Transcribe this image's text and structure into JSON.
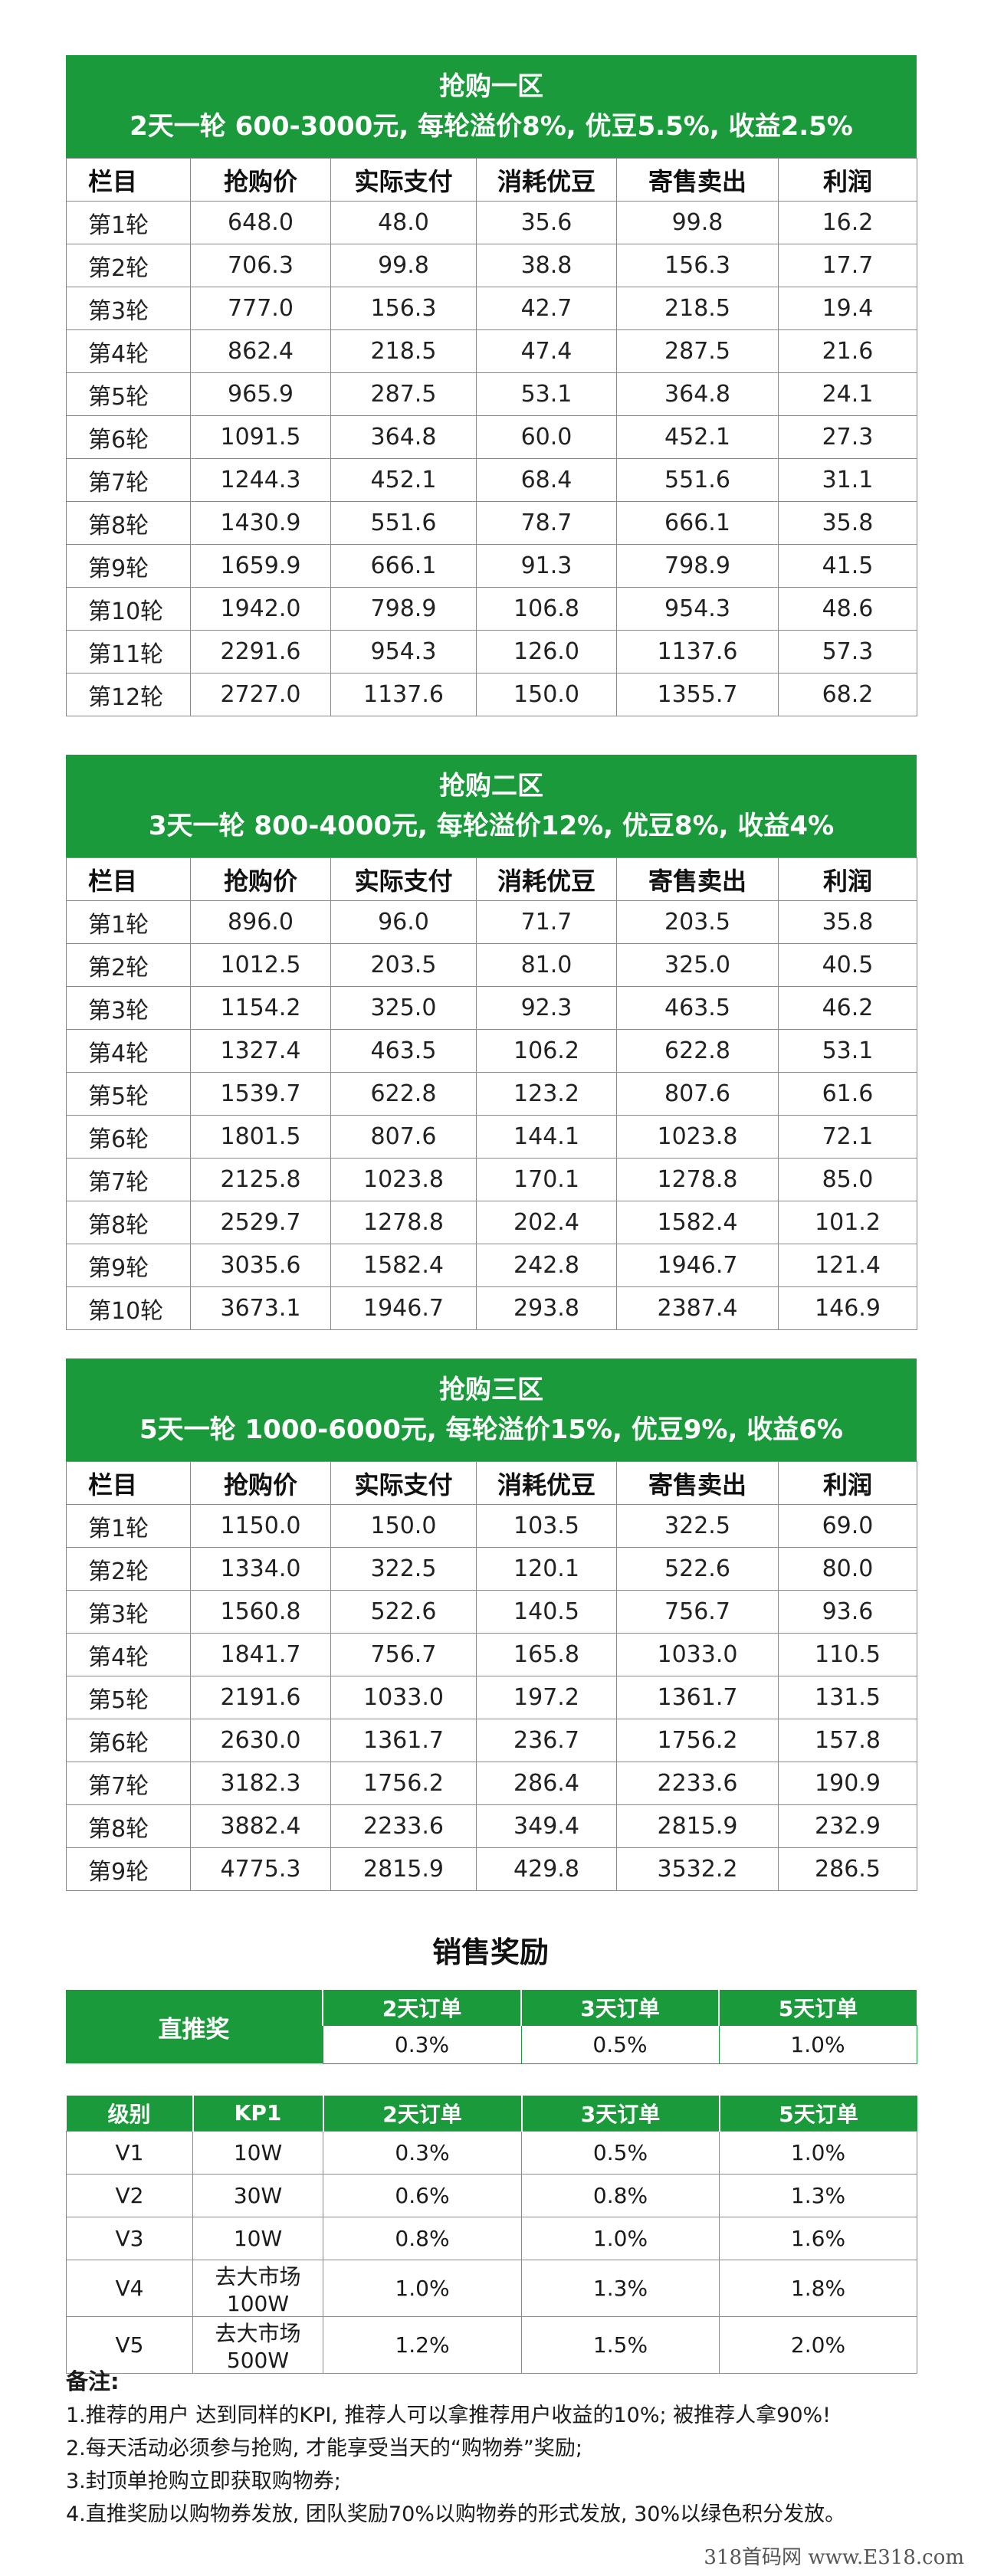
{
  "zones": [
    {
      "title": "抢购一区",
      "subtitle": "2天一轮 600-3000元, 每轮溢价8%, 优豆5.5%, 收益2.5%",
      "columns": [
        "栏目",
        "抢购价",
        "实际支付",
        "消耗优豆",
        "寄售卖出",
        "利润"
      ],
      "rows": [
        [
          "第1轮",
          "648.0",
          "48.0",
          "35.6",
          "99.8",
          "16.2"
        ],
        [
          "第2轮",
          "706.3",
          "99.8",
          "38.8",
          "156.3",
          "17.7"
        ],
        [
          "第3轮",
          "777.0",
          "156.3",
          "42.7",
          "218.5",
          "19.4"
        ],
        [
          "第4轮",
          "862.4",
          "218.5",
          "47.4",
          "287.5",
          "21.6"
        ],
        [
          "第5轮",
          "965.9",
          "287.5",
          "53.1",
          "364.8",
          "24.1"
        ],
        [
          "第6轮",
          "1091.5",
          "364.8",
          "60.0",
          "452.1",
          "27.3"
        ],
        [
          "第7轮",
          "1244.3",
          "452.1",
          "68.4",
          "551.6",
          "31.1"
        ],
        [
          "第8轮",
          "1430.9",
          "551.6",
          "78.7",
          "666.1",
          "35.8"
        ],
        [
          "第9轮",
          "1659.9",
          "666.1",
          "91.3",
          "798.9",
          "41.5"
        ],
        [
          "第10轮",
          "1942.0",
          "798.9",
          "106.8",
          "954.3",
          "48.6"
        ],
        [
          "第11轮",
          "2291.6",
          "954.3",
          "126.0",
          "1137.6",
          "57.3"
        ],
        [
          "第12轮",
          "2727.0",
          "1137.6",
          "150.0",
          "1355.7",
          "68.2"
        ]
      ]
    },
    {
      "title": "抢购二区",
      "subtitle": "3天一轮 800-4000元, 每轮溢价12%, 优豆8%, 收益4%",
      "columns": [
        "栏目",
        "抢购价",
        "实际支付",
        "消耗优豆",
        "寄售卖出",
        "利润"
      ],
      "rows": [
        [
          "第1轮",
          "896.0",
          "96.0",
          "71.7",
          "203.5",
          "35.8"
        ],
        [
          "第2轮",
          "1012.5",
          "203.5",
          "81.0",
          "325.0",
          "40.5"
        ],
        [
          "第3轮",
          "1154.2",
          "325.0",
          "92.3",
          "463.5",
          "46.2"
        ],
        [
          "第4轮",
          "1327.4",
          "463.5",
          "106.2",
          "622.8",
          "53.1"
        ],
        [
          "第5轮",
          "1539.7",
          "622.8",
          "123.2",
          "807.6",
          "61.6"
        ],
        [
          "第6轮",
          "1801.5",
          "807.6",
          "144.1",
          "1023.8",
          "72.1"
        ],
        [
          "第7轮",
          "2125.8",
          "1023.8",
          "170.1",
          "1278.8",
          "85.0"
        ],
        [
          "第8轮",
          "2529.7",
          "1278.8",
          "202.4",
          "1582.4",
          "101.2"
        ],
        [
          "第9轮",
          "3035.6",
          "1582.4",
          "242.8",
          "1946.7",
          "121.4"
        ],
        [
          "第10轮",
          "3673.1",
          "1946.7",
          "293.8",
          "2387.4",
          "146.9"
        ]
      ]
    },
    {
      "title": "抢购三区",
      "subtitle": "5天一轮 1000-6000元, 每轮溢价15%, 优豆9%, 收益6%",
      "columns": [
        "栏目",
        "抢购价",
        "实际支付",
        "消耗优豆",
        "寄售卖出",
        "利润"
      ],
      "rows": [
        [
          "第1轮",
          "1150.0",
          "150.0",
          "103.5",
          "322.5",
          "69.0"
        ],
        [
          "第2轮",
          "1334.0",
          "322.5",
          "120.1",
          "522.6",
          "80.0"
        ],
        [
          "第3轮",
          "1560.8",
          "522.6",
          "140.5",
          "756.7",
          "93.6"
        ],
        [
          "第4轮",
          "1841.7",
          "756.7",
          "165.8",
          "1033.0",
          "110.5"
        ],
        [
          "第5轮",
          "2191.6",
          "1033.0",
          "197.2",
          "1361.7",
          "131.5"
        ],
        [
          "第6轮",
          "2630.0",
          "1361.7",
          "236.7",
          "1756.2",
          "157.8"
        ],
        [
          "第7轮",
          "3182.3",
          "1756.2",
          "286.4",
          "2233.6",
          "190.9"
        ],
        [
          "第8轮",
          "3882.4",
          "2233.6",
          "349.4",
          "2815.9",
          "232.9"
        ],
        [
          "第9轮",
          "4775.3",
          "2815.9",
          "429.8",
          "3532.2",
          "286.5"
        ]
      ]
    }
  ],
  "sales": {
    "title": "销售奖励",
    "direct": {
      "label": "直推奖",
      "headers": [
        "2天订单",
        "3天订单",
        "5天订单"
      ],
      "values": [
        "0.3%",
        "0.5%",
        "1.0%"
      ]
    },
    "levels": {
      "headers": [
        "级别",
        "KP1",
        "2天订单",
        "3天订单",
        "5天订单"
      ],
      "rows": [
        [
          "V1",
          "10W",
          "0.3%",
          "0.5%",
          "1.0%"
        ],
        [
          "V2",
          "30W",
          "0.6%",
          "0.8%",
          "1.3%"
        ],
        [
          "V3",
          "10W",
          "0.8%",
          "1.0%",
          "1.6%"
        ],
        [
          "V4",
          "去大市场100W",
          "1.0%",
          "1.3%",
          "1.8%"
        ],
        [
          "V5",
          "去大市场500W",
          "1.2%",
          "1.5%",
          "2.0%"
        ]
      ]
    }
  },
  "notes": {
    "title": "备注:",
    "lines": [
      "1.推荐的用户 达到同样的KPI, 推荐人可以拿推荐用户收益的10%; 被推荐人拿90%!",
      "2.每天活动必须参与抢购, 才能享受当天的“购物券”奖励;",
      "3.封顶单抢购立即获取购物券;",
      "4.直推奖励以购物券发放, 团队奖励70%以购物券的形式发放, 30%以绿色积分发放。"
    ]
  },
  "watermark": "318首码网 www.E318.com",
  "colors": {
    "brand_green": "#1a9a3a",
    "grid_line": "#8a8a8a"
  }
}
